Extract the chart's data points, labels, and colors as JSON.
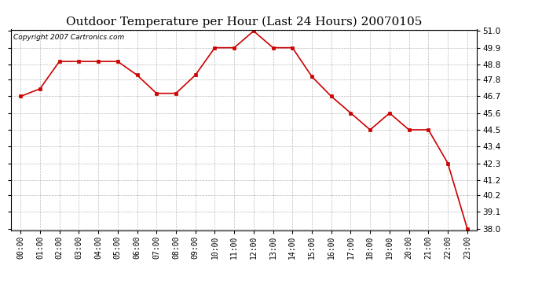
{
  "title": "Outdoor Temperature per Hour (Last 24 Hours) 20070105",
  "copyright": "Copyright 2007 Cartronics.com",
  "hours": [
    "00:00",
    "01:00",
    "02:00",
    "03:00",
    "04:00",
    "05:00",
    "06:00",
    "07:00",
    "08:00",
    "09:00",
    "10:00",
    "11:00",
    "12:00",
    "13:00",
    "14:00",
    "15:00",
    "16:00",
    "17:00",
    "18:00",
    "19:00",
    "20:00",
    "21:00",
    "22:00",
    "23:00"
  ],
  "temps": [
    46.7,
    47.2,
    49.0,
    49.0,
    49.0,
    49.0,
    48.1,
    46.9,
    46.9,
    48.1,
    49.9,
    49.9,
    51.0,
    49.9,
    49.9,
    48.0,
    46.7,
    45.6,
    44.5,
    45.6,
    44.5,
    44.5,
    42.3,
    38.0
  ],
  "line_color": "#cc0000",
  "marker": "s",
  "marker_color": "#cc0000",
  "marker_size": 3,
  "grid_color": "#bbbbbb",
  "bg_color": "#ffffff",
  "ylim_min": 37.9,
  "ylim_max": 51.1,
  "yticks": [
    38.0,
    39.1,
    40.2,
    41.2,
    42.3,
    43.4,
    44.5,
    45.6,
    46.7,
    47.8,
    48.8,
    49.9,
    51.0
  ],
  "title_fontsize": 11,
  "copyright_fontsize": 6.5,
  "tick_fontsize": 7,
  "ytick_fontsize": 7.5
}
